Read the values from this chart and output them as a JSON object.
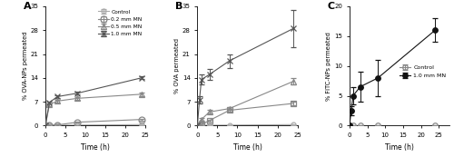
{
  "panel_A": {
    "title": "A",
    "ylabel": "% OVA-NPs permeated",
    "xlabel": "Time (h)",
    "xlim": [
      0,
      25
    ],
    "ylim": [
      0,
      35
    ],
    "yticks": [
      0,
      7,
      14,
      21,
      28,
      35
    ],
    "xticks": [
      0,
      5,
      10,
      15,
      20,
      25
    ],
    "series": [
      {
        "label": "Control",
        "x": [
          0,
          1,
          3,
          8,
          24
        ],
        "y": [
          0,
          0.08,
          0.12,
          0.15,
          0.3
        ],
        "yerr": [
          0,
          0.04,
          0.04,
          0.05,
          0.1
        ],
        "marker": "o",
        "markersize": 3.5,
        "color": "#aaaaaa",
        "linestyle": "-",
        "fillstyle": "none"
      },
      {
        "label": "0.2 mm MN",
        "x": [
          0,
          1,
          3,
          8,
          24
        ],
        "y": [
          0,
          0.1,
          0.2,
          1.0,
          1.8
        ],
        "yerr": [
          0,
          0.05,
          0.08,
          0.2,
          0.3
        ],
        "marker": "o",
        "markersize": 5,
        "color": "#888888",
        "linestyle": "-",
        "fillstyle": "none"
      },
      {
        "label": "0.5 mm MN",
        "x": [
          0,
          1,
          3,
          8,
          24
        ],
        "y": [
          0,
          6.2,
          7.2,
          8.0,
          9.2
        ],
        "yerr": [
          0,
          0.4,
          0.4,
          0.4,
          0.5
        ],
        "marker": "^",
        "markersize": 4,
        "color": "#888888",
        "linestyle": "-",
        "fillstyle": "none"
      },
      {
        "label": "1.0 mm MN",
        "x": [
          0,
          1,
          3,
          8,
          24
        ],
        "y": [
          0,
          6.8,
          8.5,
          9.5,
          14.0
        ],
        "yerr": [
          0,
          0.35,
          0.35,
          0.35,
          0.4
        ],
        "marker": "x",
        "markersize": 5,
        "color": "#555555",
        "linestyle": "-",
        "fillstyle": "full"
      }
    ]
  },
  "panel_B": {
    "title": "B",
    "ylabel": "% OVA permeated",
    "xlabel": "Time (h)",
    "xlim": [
      0,
      25
    ],
    "ylim": [
      0,
      35
    ],
    "yticks": [
      0,
      7,
      14,
      21,
      28,
      35
    ],
    "xticks": [
      0,
      5,
      10,
      15,
      20,
      25
    ],
    "series": [
      {
        "label": "Control",
        "x": [
          0,
          1,
          3,
          8,
          24
        ],
        "y": [
          0,
          0.1,
          0.12,
          0.15,
          0.3
        ],
        "yerr": [
          0,
          0.04,
          0.04,
          0.04,
          0.1
        ],
        "marker": "o",
        "markersize": 3.5,
        "color": "#aaaaaa",
        "linestyle": "-",
        "fillstyle": "none"
      },
      {
        "label": "0.2 mm MN",
        "x": [
          0,
          1,
          3,
          8,
          24
        ],
        "y": [
          0,
          0.3,
          1.5,
          4.5,
          6.5
        ],
        "yerr": [
          0,
          0.1,
          0.3,
          0.4,
          0.5
        ],
        "marker": "s",
        "markersize": 4,
        "color": "#888888",
        "linestyle": "-",
        "fillstyle": "none"
      },
      {
        "label": "0.5 mm MN",
        "x": [
          0,
          1,
          3,
          8,
          24
        ],
        "y": [
          0,
          1.8,
          4.0,
          5.0,
          13.0
        ],
        "yerr": [
          0,
          0.4,
          0.5,
          0.5,
          1.0
        ],
        "marker": "^",
        "markersize": 4,
        "color": "#888888",
        "linestyle": "-",
        "fillstyle": "none"
      },
      {
        "label": "1.0 mm MN",
        "x": [
          0,
          0.5,
          1,
          3,
          8,
          24
        ],
        "y": [
          0,
          7.5,
          13.5,
          15.0,
          19.0,
          28.5
        ],
        "yerr": [
          0,
          1.0,
          1.5,
          1.5,
          2.0,
          5.5
        ],
        "marker": "x",
        "markersize": 5,
        "color": "#555555",
        "linestyle": "-",
        "fillstyle": "full"
      }
    ]
  },
  "panel_C": {
    "title": "C",
    "ylabel": "% FITC-NPs permeated",
    "xlabel": "Time (h)",
    "xlim": [
      0,
      28
    ],
    "ylim": [
      0,
      20
    ],
    "yticks": [
      0,
      5,
      10,
      15,
      20
    ],
    "xticks": [
      0,
      5,
      10,
      15,
      20,
      25
    ],
    "series": [
      {
        "label": "Control",
        "x": [
          0,
          1,
          3,
          8,
          24
        ],
        "y": [
          0,
          0.0,
          0.0,
          0.0,
          0.0
        ],
        "yerr": [
          0,
          0.0,
          0.0,
          0.0,
          0.0
        ],
        "marker": "o",
        "markersize": 4,
        "color": "#888888",
        "linestyle": "-",
        "fillstyle": "none"
      },
      {
        "label": "1.0 mm MN",
        "x": [
          0,
          0.5,
          1,
          3,
          8,
          24
        ],
        "y": [
          0,
          2.5,
          5.0,
          6.5,
          8.0,
          16.0
        ],
        "yerr": [
          0,
          0.8,
          1.5,
          2.5,
          3.0,
          2.0
        ],
        "marker": "o",
        "markersize": 4,
        "color": "#111111",
        "linestyle": "-",
        "fillstyle": "full"
      }
    ]
  }
}
